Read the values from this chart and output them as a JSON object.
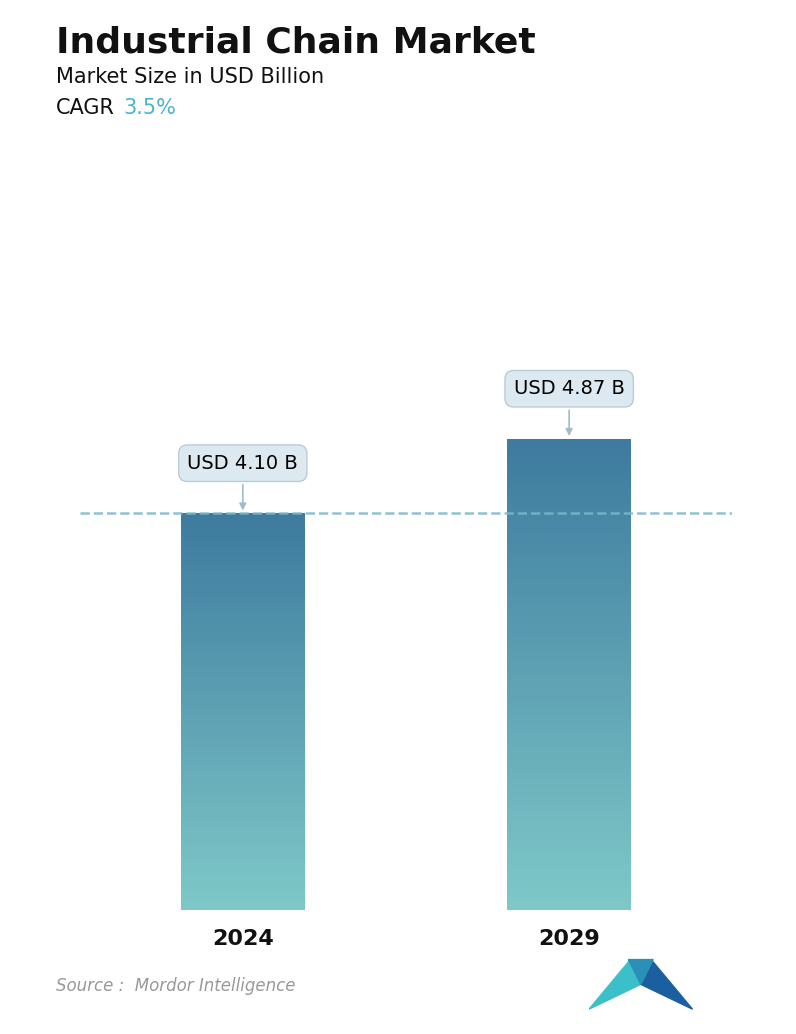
{
  "title": "Industrial Chain Market",
  "subtitle": "Market Size in USD Billion",
  "cagr_label": "CAGR",
  "cagr_value": "3.5%",
  "cagr_color": "#4ab3d4",
  "categories": [
    "2024",
    "2029"
  ],
  "values": [
    4.1,
    4.87
  ],
  "value_labels": [
    "USD 4.10 B",
    "USD 4.87 B"
  ],
  "bar_color_top": "#3d7a9e",
  "bar_color_bottom": "#7ec8c8",
  "dashed_line_color": "#7ab8cc",
  "dashed_line_y": 4.1,
  "source_text": "Source :  Mordor Intelligence",
  "bg_color": "#ffffff",
  "title_fontsize": 26,
  "subtitle_fontsize": 15,
  "cagr_fontsize": 15,
  "tick_fontsize": 16,
  "source_fontsize": 12,
  "label_fontsize": 14,
  "ylim": [
    0,
    6.2
  ],
  "bar_width": 0.38
}
